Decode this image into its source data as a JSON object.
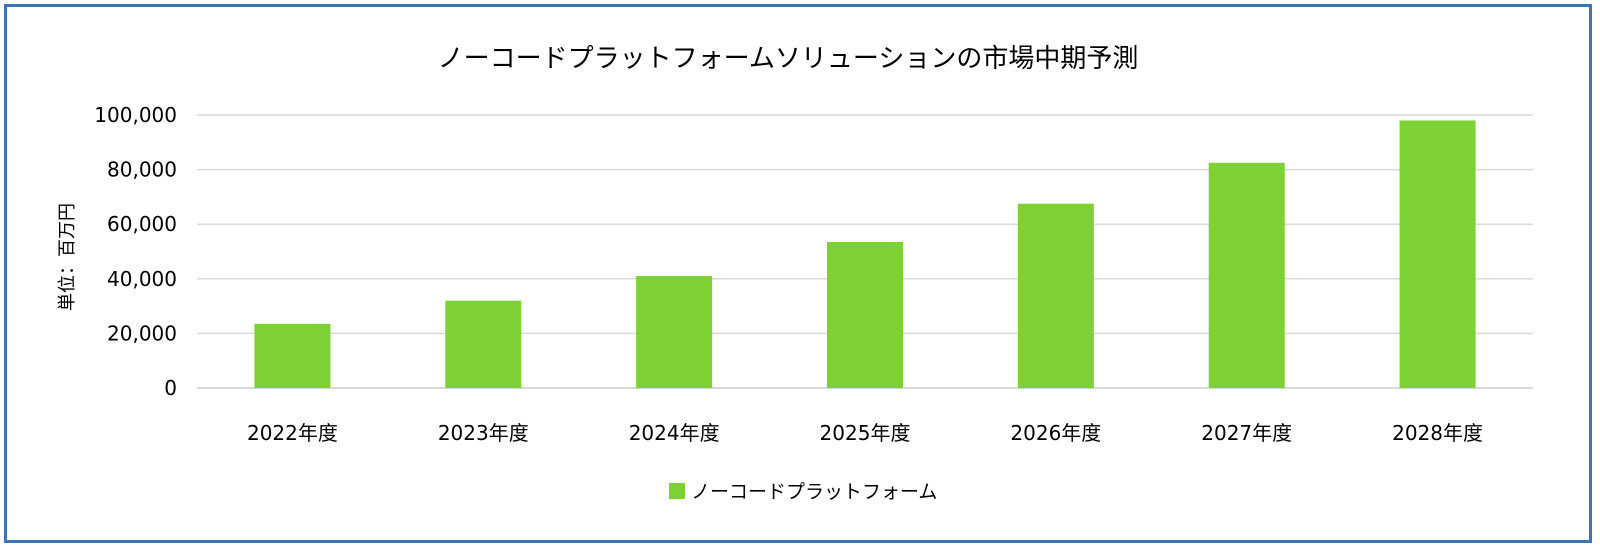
{
  "chart_data": {
    "type": "bar",
    "title": "ノーコードプラットフォームソリューションの市場中期予測",
    "ylabel": "単位：百万円",
    "xlabel": "",
    "categories": [
      "2022年度",
      "2023年度",
      "2024年度",
      "2025年度",
      "2026年度",
      "2027年度",
      "2028年度"
    ],
    "series": [
      {
        "name": "ノーコードプラットフォーム",
        "values": [
          23500,
          32000,
          41000,
          53500,
          67500,
          82500,
          98000
        ]
      }
    ],
    "ylim": [
      0,
      100000
    ],
    "yticks": [
      0,
      20000,
      40000,
      60000,
      80000,
      100000
    ],
    "ytick_labels": [
      "0",
      "20,000",
      "40,000",
      "60,000",
      "80,000",
      "100,000"
    ],
    "grid": true,
    "legend_position": "bottom",
    "colors": {
      "bar": "#7ed135",
      "grid": "#d9d9d9",
      "frame": "#3f73b8"
    }
  }
}
